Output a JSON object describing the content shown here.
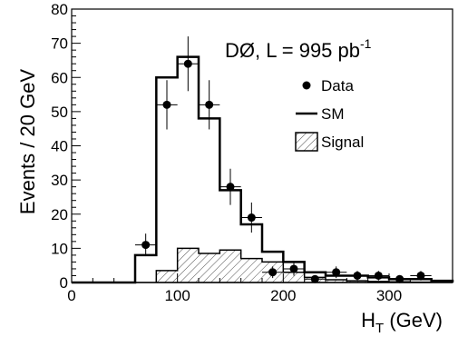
{
  "chart_data": {
    "type": "histogram",
    "title": "",
    "header": {
      "experiment": "DØ, L = 995 pb",
      "superscript": "-1"
    },
    "xlabel": {
      "main": "H",
      "subscript": "T",
      "unit": " (GeV)"
    },
    "ylabel": "Events / 20 GeV",
    "xlim": [
      0,
      360
    ],
    "ylim": [
      0,
      80
    ],
    "x_ticks": [
      0,
      100,
      200,
      300
    ],
    "y_ticks": [
      0,
      10,
      20,
      30,
      40,
      50,
      60,
      70,
      80
    ],
    "bin_edges": [
      0,
      20,
      40,
      60,
      80,
      100,
      120,
      140,
      160,
      180,
      200,
      220,
      240,
      260,
      280,
      300,
      320,
      340,
      360
    ],
    "sm": [
      0,
      0,
      0,
      8,
      60,
      66,
      48,
      27,
      17,
      9,
      6,
      3,
      2,
      2,
      1.5,
      1,
      1,
      0.5
    ],
    "signal": [
      0,
      0,
      0,
      0,
      3.5,
      10,
      8.5,
      9.5,
      7,
      6,
      3,
      1.5,
      0.8,
      0.5,
      0.3,
      0.2,
      0.1,
      0
    ],
    "data": [
      {
        "x": 70,
        "y": 11,
        "err": 3.3
      },
      {
        "x": 90,
        "y": 52,
        "err": 7.2
      },
      {
        "x": 110,
        "y": 64,
        "err": 8.0
      },
      {
        "x": 130,
        "y": 52,
        "err": 7.2
      },
      {
        "x": 150,
        "y": 28,
        "err": 5.3
      },
      {
        "x": 170,
        "y": 19,
        "err": 4.4
      },
      {
        "x": 190,
        "y": 3,
        "err": 1.7
      },
      {
        "x": 210,
        "y": 4,
        "err": 2.0
      },
      {
        "x": 230,
        "y": 1,
        "err": 1.0
      },
      {
        "x": 250,
        "y": 3,
        "err": 1.7
      },
      {
        "x": 270,
        "y": 2,
        "err": 1.4
      },
      {
        "x": 290,
        "y": 2,
        "err": 1.4
      },
      {
        "x": 310,
        "y": 1,
        "err": 1.0
      },
      {
        "x": 330,
        "y": 2,
        "err": 1.4
      }
    ],
    "legend": [
      {
        "label": "Data",
        "symbol": "marker"
      },
      {
        "label": "SM",
        "symbol": "line"
      },
      {
        "label": "Signal",
        "symbol": "hatched-box"
      }
    ],
    "colors": {
      "line": "#000000",
      "hatch": "#444444"
    }
  }
}
